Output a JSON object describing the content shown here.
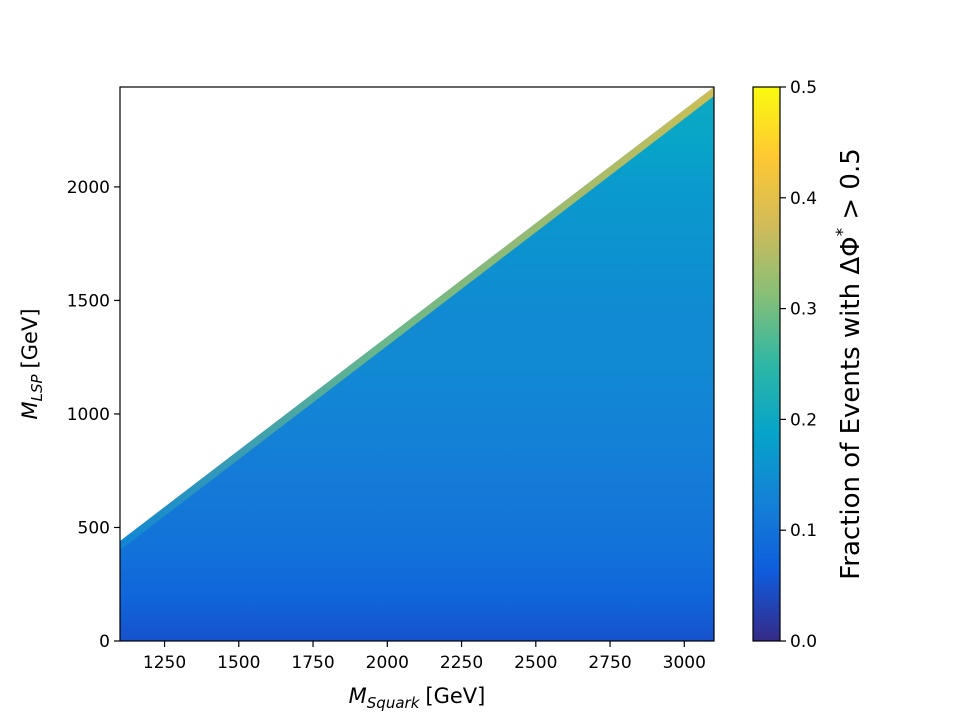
{
  "chart_data": {
    "type": "heatmap",
    "title": "",
    "xlabel": {
      "main": "M",
      "sub": "Squark",
      "unit": "[GeV]"
    },
    "ylabel": {
      "main": "M",
      "sub": "LSP",
      "unit": "[GeV]"
    },
    "xlim": [
      1100,
      3100
    ],
    "ylim": [
      0,
      2440
    ],
    "x_ticks": [
      1250,
      1500,
      1750,
      2000,
      2250,
      2500,
      2750,
      3000
    ],
    "y_ticks": [
      0,
      500,
      1000,
      1500,
      2000
    ],
    "colorbar": {
      "label": {
        "main": "Fraction of Events with ΔΦ",
        "sup": "*",
        "tail": " > 0.5"
      },
      "range": [
        0.0,
        0.5
      ],
      "ticks": [
        "0.0",
        "0.1",
        "0.2",
        "0.3",
        "0.4",
        "0.5"
      ],
      "colormap": [
        "#352a87",
        "#0f5cdd",
        "#1481d6",
        "#06a4ca",
        "#2eb7a4",
        "#87bf77",
        "#d1bb59",
        "#fec832",
        "#f9fb0e"
      ]
    },
    "valid_region": {
      "description_boundary": [
        [
          1100,
          440
        ],
        [
          3100,
          2440
        ]
      ]
    },
    "grid": false,
    "legend": "none",
    "field": {
      "x": [
        1100,
        1300,
        1500,
        1700,
        1900,
        2100,
        2300,
        2500,
        2700,
        2900,
        3100
      ],
      "y": [
        0,
        200,
        400,
        600,
        800,
        1000,
        1200,
        1400,
        1600,
        1800,
        2000,
        2200,
        2400
      ],
      "z": [
        [
          0.05,
          0.05,
          0.05,
          0.05,
          0.05,
          0.05,
          0.05,
          0.05,
          0.05,
          0.05,
          0.05
        ],
        [
          0.08,
          0.08,
          0.08,
          0.08,
          0.08,
          0.08,
          0.08,
          0.08,
          0.08,
          0.08,
          0.08
        ],
        [
          0.12,
          0.11,
          0.1,
          0.1,
          0.1,
          0.1,
          0.1,
          0.1,
          0.1,
          0.1,
          0.1
        ],
        [
          null,
          0.14,
          0.12,
          0.11,
          0.11,
          0.11,
          0.11,
          0.11,
          0.11,
          0.11,
          0.11
        ],
        [
          null,
          null,
          0.14,
          0.12,
          0.12,
          0.12,
          0.12,
          0.12,
          0.12,
          0.12,
          0.12
        ],
        [
          null,
          null,
          null,
          0.15,
          0.13,
          0.13,
          0.13,
          0.13,
          0.13,
          0.13,
          0.13
        ],
        [
          null,
          null,
          null,
          null,
          0.16,
          0.14,
          0.14,
          0.14,
          0.14,
          0.14,
          0.14
        ],
        [
          null,
          null,
          null,
          null,
          null,
          0.17,
          0.15,
          0.14,
          0.14,
          0.14,
          0.14
        ],
        [
          null,
          null,
          null,
          null,
          null,
          null,
          0.18,
          0.16,
          0.15,
          0.15,
          0.15
        ],
        [
          null,
          null,
          null,
          null,
          null,
          null,
          null,
          0.18,
          0.17,
          0.16,
          0.16
        ],
        [
          null,
          null,
          null,
          null,
          null,
          null,
          null,
          null,
          0.19,
          0.18,
          0.17
        ],
        [
          null,
          null,
          null,
          null,
          null,
          null,
          null,
          null,
          null,
          0.2,
          0.19
        ],
        [
          null,
          null,
          null,
          null,
          null,
          null,
          null,
          null,
          null,
          null,
          0.2
        ]
      ],
      "edge_value": 0.4
    }
  }
}
